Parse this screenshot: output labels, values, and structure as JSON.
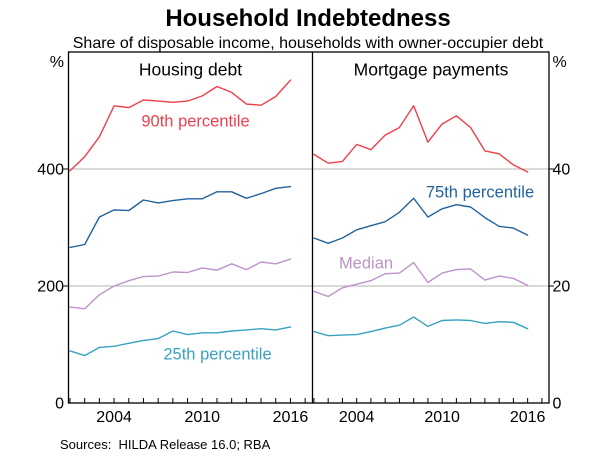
{
  "chart_data": {
    "type": "line",
    "title": "Household Indebtedness",
    "subtitle": "Share of disposable income, households with owner-occupier debt",
    "sources": "Sources:  HILDA Release 16.0; RBA",
    "unit_label": "%",
    "x": [
      2001,
      2002,
      2003,
      2004,
      2005,
      2006,
      2007,
      2008,
      2009,
      2010,
      2011,
      2012,
      2013,
      2014,
      2015,
      2016
    ],
    "xlim": [
      2000.9,
      2017.5
    ],
    "minor_xticks": [
      2001,
      2002,
      2003,
      2004,
      2005,
      2006,
      2007,
      2008,
      2009,
      2010,
      2011,
      2012,
      2013,
      2014,
      2015,
      2016,
      2017
    ],
    "xtick_years": [
      2004,
      2010,
      2016
    ],
    "xtick_labels": [
      "2004",
      "2010",
      "2016"
    ],
    "grid_color": "#b3b3b3",
    "axis_color": "#000000",
    "legend_position": "inline-labels",
    "panels": [
      {
        "title": "Housing debt",
        "ylim": [
          0,
          600
        ],
        "yticks": [
          0,
          200,
          400
        ],
        "ytick_labels": [
          "0",
          "200",
          "400"
        ],
        "axis_side": "left",
        "series": [
          {
            "name": "90th percentile",
            "color": "#ee3f4c",
            "label_shown": true,
            "values": [
              397,
              421,
              455,
              508,
              505,
              518,
              516,
              514,
              516,
              525,
              541,
              531,
              511,
              509,
              524,
              552
            ]
          },
          {
            "name": "75th percentile",
            "color": "#20639e",
            "label_shown": false,
            "values": [
              266,
              271,
              318,
              330,
              329,
              347,
              342,
              346,
              349,
              349,
              361,
              361,
              350,
              358,
              367,
              370
            ]
          },
          {
            "name": "Median",
            "color": "#be93c9",
            "label_shown": false,
            "values": [
              164,
              161,
              185,
              200,
              209,
              216,
              217,
              224,
              223,
              231,
              227,
              238,
              228,
              241,
              238,
              246
            ]
          },
          {
            "name": "25th percentile",
            "color": "#38a2c0",
            "label_shown": true,
            "values": [
              89,
              81,
              95,
              97,
              102,
              107,
              110,
              123,
              117,
              120,
              120,
              123,
              125,
              127,
              125,
              130
            ]
          }
        ]
      },
      {
        "title": "Mortgage payments",
        "ylim": [
          0,
          60
        ],
        "yticks": [
          0,
          20,
          40
        ],
        "ytick_labels": [
          "0",
          "20",
          "40"
        ],
        "axis_side": "right",
        "series": [
          {
            "name": "90th percentile",
            "color": "#ee3f4c",
            "label_shown": false,
            "values": [
              42.5,
              41.0,
              41.3,
              44.2,
              43.3,
              45.8,
              47.1,
              50.8,
              44.6,
              47.7,
              49.1,
              47.1,
              43.1,
              42.6,
              40.7,
              39.5
            ]
          },
          {
            "name": "75th percentile",
            "color": "#20639e",
            "label_shown": true,
            "values": [
              28.2,
              27.3,
              28.2,
              29.6,
              30.3,
              31.0,
              32.6,
              35.0,
              31.8,
              33.2,
              33.9,
              33.5,
              31.7,
              30.2,
              29.9,
              28.7
            ]
          },
          {
            "name": "Median",
            "color": "#be93c9",
            "label_shown": true,
            "values": [
              19.1,
              18.2,
              19.7,
              20.3,
              20.9,
              22.1,
              22.2,
              24.0,
              20.6,
              22.2,
              22.8,
              22.9,
              21.0,
              21.7,
              21.3,
              20.1
            ]
          },
          {
            "name": "25th percentile",
            "color": "#38a2c0",
            "label_shown": false,
            "values": [
              12.2,
              11.5,
              11.6,
              11.7,
              12.2,
              12.8,
              13.3,
              14.7,
              13.1,
              14.1,
              14.2,
              14.1,
              13.6,
              13.9,
              13.8,
              12.7
            ]
          }
        ]
      }
    ]
  }
}
